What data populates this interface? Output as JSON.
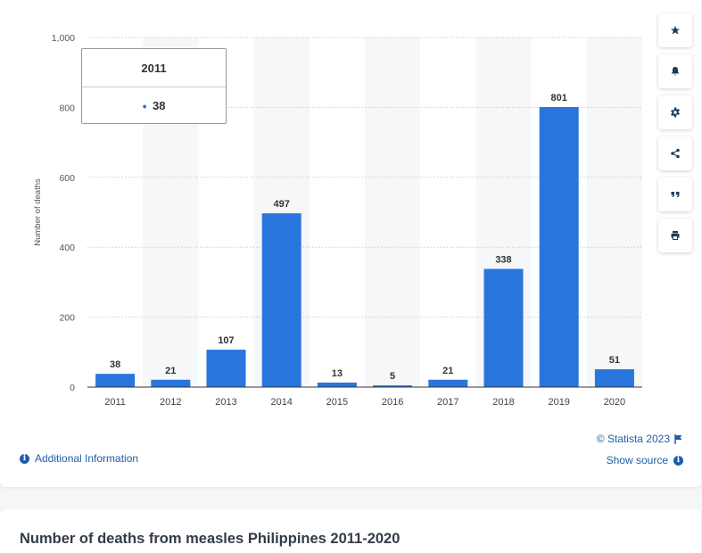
{
  "chart_data": {
    "type": "bar",
    "categories": [
      "2011",
      "2012",
      "2013",
      "2014",
      "2015",
      "2016",
      "2017",
      "2018",
      "2019",
      "2020"
    ],
    "values": [
      38,
      21,
      107,
      497,
      13,
      5,
      21,
      338,
      801,
      51
    ],
    "ylabel": "Number of deaths",
    "xlabel": "",
    "ylim": [
      0,
      1000
    ],
    "yticks": [
      "0",
      "200",
      "400",
      "600",
      "800",
      "1,000"
    ],
    "grid": true,
    "bar_color": "#2876dd"
  },
  "tooltip": {
    "year": "2011",
    "value": "38"
  },
  "toolbar": {
    "buttons": [
      {
        "icon": "star-icon"
      },
      {
        "icon": "bell-icon"
      },
      {
        "icon": "gear-icon"
      },
      {
        "icon": "share-icon"
      },
      {
        "icon": "quote-icon"
      },
      {
        "icon": "print-icon"
      }
    ]
  },
  "footer": {
    "credit": "© Statista 2023",
    "show_source": "Show source",
    "additional_info": "Additional Information"
  },
  "title": "Number of deaths from measles Philippines 2011-2020"
}
